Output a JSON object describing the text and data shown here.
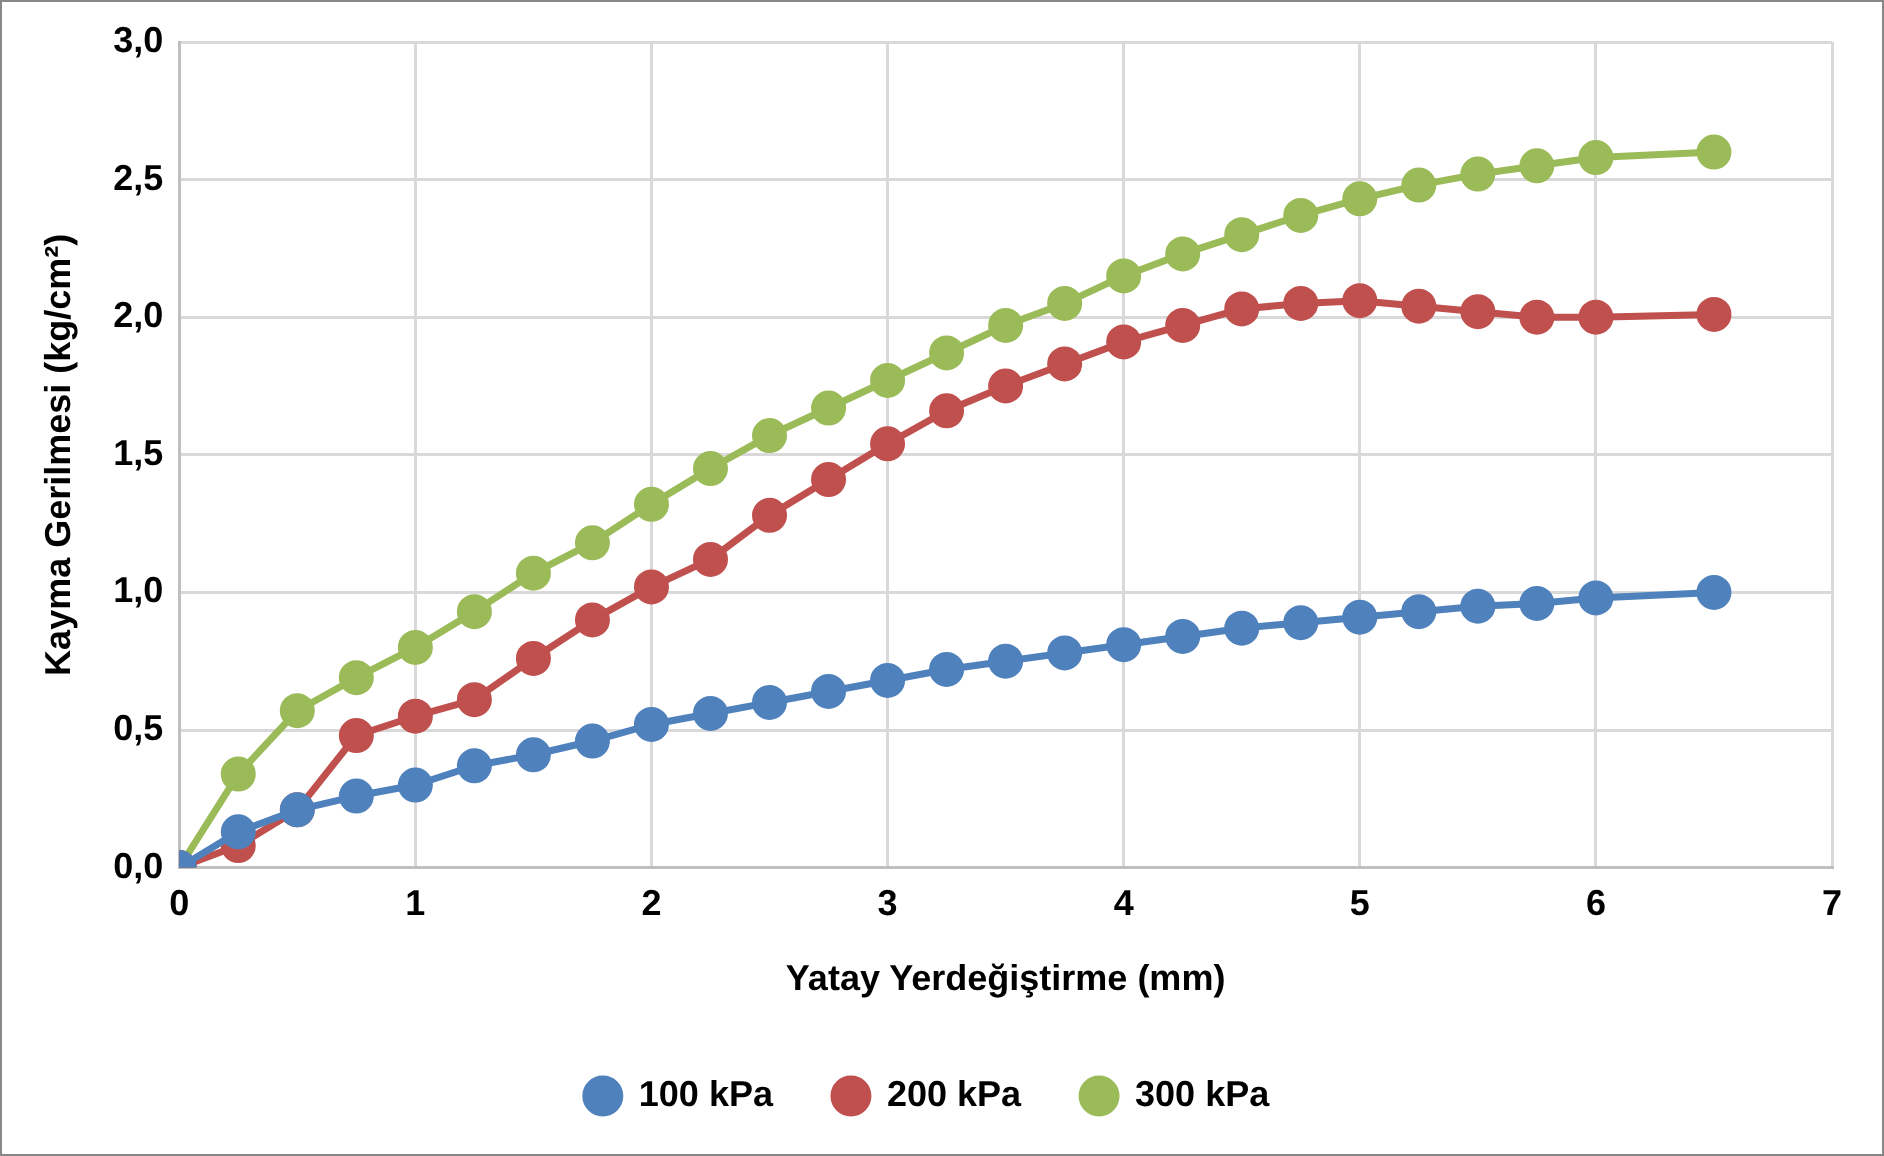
{
  "chart_data": {
    "type": "line",
    "xlabel": "Yatay Yerdeğiştirme (mm)",
    "ylabel": "Kayma Gerilmesi (kg/cm²)",
    "x": [
      0,
      0.25,
      0.5,
      0.75,
      1,
      1.25,
      1.5,
      1.75,
      2,
      2.25,
      2.5,
      2.75,
      3,
      3.25,
      3.5,
      3.75,
      4,
      4.25,
      4.5,
      4.75,
      5,
      5.25,
      5.5,
      5.75,
      6,
      6.5
    ],
    "series": [
      {
        "name": "100 kPa",
        "color": "#4f81bd",
        "values": [
          0,
          0.13,
          0.21,
          0.26,
          0.3,
          0.37,
          0.41,
          0.46,
          0.52,
          0.56,
          0.6,
          0.64,
          0.68,
          0.72,
          0.75,
          0.78,
          0.81,
          0.84,
          0.87,
          0.89,
          0.91,
          0.93,
          0.95,
          0.96,
          0.98,
          1.0
        ]
      },
      {
        "name": "200 kPa",
        "color": "#c0504d",
        "values": [
          0,
          0.08,
          0.21,
          0.48,
          0.55,
          0.61,
          0.76,
          0.9,
          1.02,
          1.12,
          1.28,
          1.41,
          1.54,
          1.66,
          1.75,
          1.83,
          1.91,
          1.97,
          2.03,
          2.05,
          2.06,
          2.04,
          2.02,
          2.0,
          2.0,
          2.01
        ]
      },
      {
        "name": "300 kPa",
        "color": "#9bbb59",
        "values": [
          0,
          0.34,
          0.57,
          0.69,
          0.8,
          0.93,
          1.07,
          1.18,
          1.32,
          1.45,
          1.57,
          1.67,
          1.77,
          1.87,
          1.97,
          2.05,
          2.15,
          2.23,
          2.3,
          2.37,
          2.43,
          2.48,
          2.52,
          2.55,
          2.58,
          2.6
        ]
      }
    ],
    "xlim": [
      0,
      7
    ],
    "xticks": [
      0,
      1,
      2,
      3,
      4,
      5,
      6,
      7
    ],
    "ylim": [
      0,
      3
    ],
    "yticks": [
      {
        "value": 0,
        "label": "0,0"
      },
      {
        "value": 0.5,
        "label": "0,5"
      },
      {
        "value": 1,
        "label": "1,0"
      },
      {
        "value": 1.5,
        "label": "1,5"
      },
      {
        "value": 2,
        "label": "2,0"
      },
      {
        "value": 2.5,
        "label": "2,5"
      },
      {
        "value": 3,
        "label": "3,0"
      }
    ],
    "grid": true,
    "legend": "bottom",
    "marker": "circle",
    "line_style": "solid"
  }
}
